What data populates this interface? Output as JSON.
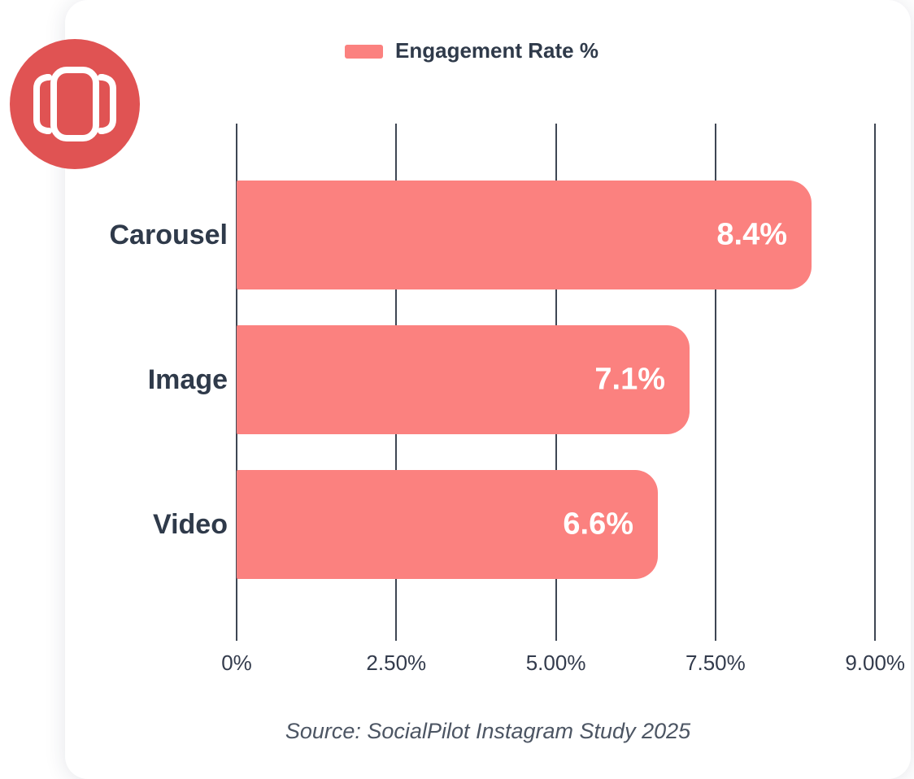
{
  "branding": {
    "logo_icon": "carousel-icon",
    "logo_bg_color": "#E05353",
    "logo_glyph_color": "#ffffff"
  },
  "chart_data": {
    "type": "bar",
    "orientation": "horizontal",
    "legend": "Engagement Rate %",
    "legend_position": "top-center",
    "categories": [
      "Carousel",
      "Image",
      "Video"
    ],
    "values": [
      8.4,
      7.1,
      6.6
    ],
    "value_labels": [
      "8.4%",
      "7.1%",
      "6.6%"
    ],
    "x_ticks": [
      "0%",
      "2.50%",
      "5.00%",
      "7.50%",
      "9.00%"
    ],
    "x_tick_values": [
      0,
      2.5,
      5,
      7.5,
      9
    ],
    "xlim": [
      0,
      9
    ],
    "grid": true,
    "bar_color": "#FB817F",
    "label_color": "#2F3A4A",
    "gridline_color": "#3E4653",
    "source": "Source: SocialPilot Instagram Study 2025"
  }
}
